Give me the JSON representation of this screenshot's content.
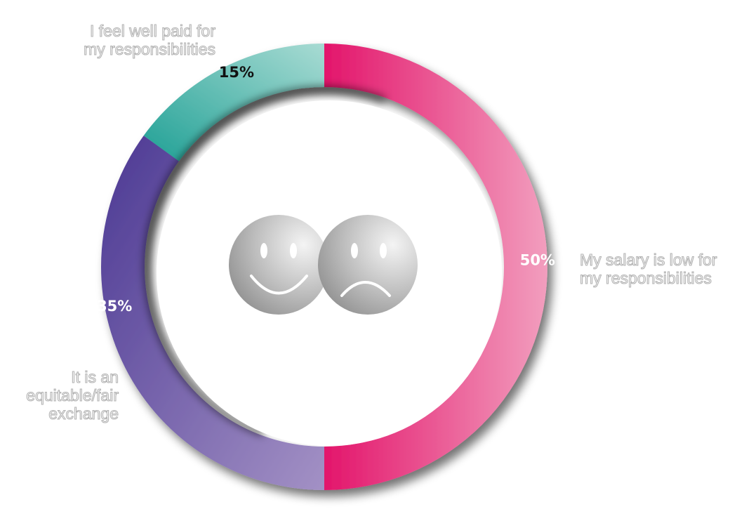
{
  "chart_data": {
    "type": "pie",
    "variant": "donut",
    "categories": [
      [
        "My salary is low for",
        "my responsibilities"
      ],
      [
        "It is an",
        "equitable/fair",
        "exchange"
      ],
      [
        "I feel well paid for",
        "my responsibilities"
      ]
    ],
    "values": [
      50,
      35,
      15
    ],
    "value_labels": [
      "50%",
      "35%",
      "15%"
    ],
    "start_angle_deg": 0,
    "direction": "clockwise",
    "colors": [
      {
        "start": "#e3156b",
        "end": "#f29ebe"
      },
      {
        "start": "#4b3893",
        "end": "#a391c5"
      },
      {
        "start": "#1fa095",
        "end": "#a8dbd3"
      }
    ],
    "value_label_colors": [
      "#ffffff",
      "#ffffff",
      "#111111"
    ],
    "center_icons": [
      "smiley-face-icon",
      "sad-face-icon"
    ],
    "legend": "none"
  }
}
